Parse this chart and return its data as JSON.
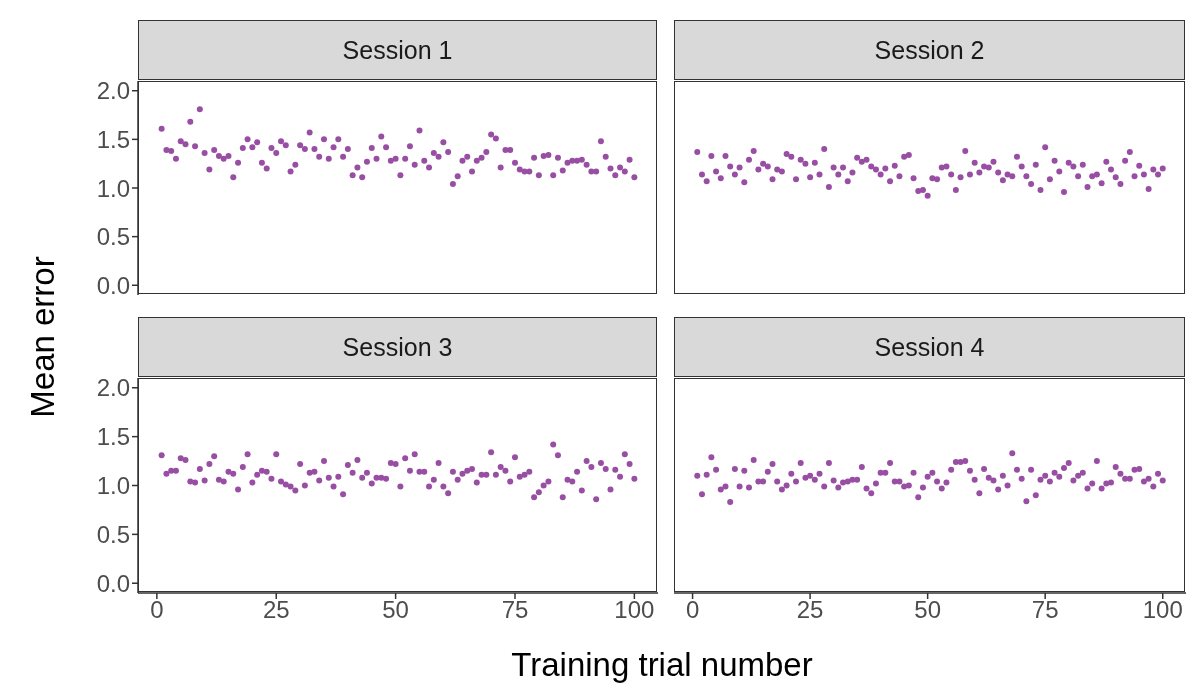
{
  "chart_data": [
    {
      "type": "scatter",
      "title": "Session 1",
      "ylabel": "Mean error",
      "color": "#984ea3",
      "marker": "circle",
      "tick_labels": "y",
      "xlim": [
        -3.95,
        104.95
      ],
      "ylim": [
        -0.1,
        2.1
      ],
      "yticks": [
        {
          "value": 0,
          "label": "0.0"
        },
        {
          "value": 0.5,
          "label": "0.5"
        },
        {
          "value": 1,
          "label": "1.0"
        },
        {
          "value": 1.5,
          "label": "1.5"
        },
        {
          "value": 2,
          "label": "2.0"
        }
      ],
      "x": [
        1,
        2,
        3,
        4,
        5,
        6,
        7,
        8,
        9,
        10,
        11,
        12,
        13,
        14,
        15,
        16,
        17,
        18,
        19,
        20,
        21,
        22,
        23,
        24,
        25,
        26,
        27,
        28,
        29,
        30,
        31,
        32,
        33,
        34,
        35,
        36,
        37,
        38,
        39,
        40,
        41,
        42,
        43,
        44,
        45,
        46,
        47,
        48,
        49,
        50,
        51,
        52,
        53,
        54,
        55,
        56,
        57,
        58,
        59,
        60,
        61,
        62,
        63,
        64,
        65,
        66,
        67,
        68,
        69,
        70,
        71,
        72,
        73,
        74,
        75,
        76,
        77,
        78,
        79,
        80,
        81,
        82,
        83,
        84,
        85,
        86,
        87,
        88,
        89,
        90,
        91,
        92,
        93,
        94,
        95,
        96,
        97,
        98,
        99,
        100
      ],
      "values": [
        1.61,
        1.39,
        1.38,
        1.3,
        1.48,
        1.45,
        1.68,
        1.43,
        1.81,
        1.36,
        1.19,
        1.39,
        1.33,
        1.3,
        1.33,
        1.11,
        1.26,
        1.41,
        1.5,
        1.42,
        1.47,
        1.26,
        1.2,
        1.41,
        1.36,
        1.48,
        1.44,
        1.17,
        1.24,
        1.44,
        1.4,
        1.57,
        1.4,
        1.32,
        1.5,
        1.3,
        1.42,
        1.5,
        1.32,
        1.4,
        1.13,
        1.21,
        1.11,
        1.27,
        1.41,
        1.3,
        1.53,
        1.42,
        1.28,
        1.3,
        1.13,
        1.3,
        1.43,
        1.24,
        1.59,
        1.28,
        1.21,
        1.36,
        1.32,
        1.47,
        1.37,
        1.04,
        1.12,
        1.28,
        1.32,
        1.17,
        1.28,
        1.31,
        1.37,
        1.55,
        1.51,
        1.21,
        1.39,
        1.39,
        1.26,
        1.19,
        1.17,
        1.17,
        1.31,
        1.13,
        1.33,
        1.34,
        1.13,
        1.31,
        1.18,
        1.26,
        1.28,
        1.28,
        1.29,
        1.24,
        1.17,
        1.17,
        1.48,
        1.32,
        1.2,
        1.13,
        1.21,
        1.17,
        1.29,
        1.11
      ]
    },
    {
      "type": "scatter",
      "title": "Session 2",
      "color": "#984ea3",
      "marker": "circle",
      "tick_labels": false,
      "xlim": [
        -3.95,
        104.95
      ],
      "ylim": [
        -0.1,
        2.1
      ],
      "x": [
        1,
        2,
        3,
        4,
        5,
        6,
        7,
        8,
        9,
        10,
        11,
        12,
        13,
        14,
        15,
        16,
        17,
        18,
        19,
        20,
        21,
        22,
        23,
        24,
        25,
        26,
        27,
        28,
        29,
        30,
        31,
        32,
        33,
        34,
        35,
        36,
        37,
        38,
        39,
        40,
        41,
        42,
        43,
        44,
        45,
        46,
        47,
        48,
        49,
        50,
        51,
        52,
        53,
        54,
        55,
        56,
        57,
        58,
        59,
        60,
        61,
        62,
        63,
        64,
        65,
        66,
        67,
        68,
        69,
        70,
        71,
        72,
        73,
        74,
        75,
        76,
        77,
        78,
        79,
        80,
        81,
        82,
        83,
        84,
        85,
        86,
        87,
        88,
        89,
        90,
        91,
        92,
        93,
        94,
        95,
        96,
        97,
        98,
        99,
        100
      ],
      "values": [
        1.37,
        1.14,
        1.07,
        1.33,
        1.17,
        1.1,
        1.33,
        1.22,
        1.14,
        1.21,
        1.06,
        1.29,
        1.38,
        1.19,
        1.25,
        1.22,
        1.09,
        1.19,
        1.17,
        1.35,
        1.32,
        1.09,
        1.29,
        1.25,
        1.11,
        1.26,
        1.14,
        1.4,
        1.01,
        1.21,
        1.14,
        1.21,
        1.07,
        1.16,
        1.31,
        1.27,
        1.29,
        1.22,
        1.19,
        1.14,
        1.2,
        1.07,
        1.23,
        1.12,
        1.32,
        1.34,
        1.1,
        0.97,
        0.98,
        0.92,
        1.1,
        1.09,
        1.21,
        1.22,
        1.14,
        0.98,
        1.11,
        1.38,
        1.14,
        1.26,
        1.16,
        1.22,
        1.21,
        1.27,
        1.16,
        1.08,
        1.14,
        1.12,
        1.32,
        1.22,
        1.12,
        1.04,
        1.24,
        0.98,
        1.42,
        1.09,
        1.28,
        1.17,
        0.96,
        1.26,
        1.22,
        1.12,
        1.24,
        1.01,
        1.12,
        1.14,
        1.05,
        1.27,
        1.19,
        1.11,
        1.04,
        1.28,
        1.37,
        1.12,
        1.23,
        1.14,
        0.99,
        1.19,
        1.14,
        1.2
      ]
    },
    {
      "type": "scatter",
      "title": "Session 3",
      "xlabel": "Training trial number",
      "color": "#984ea3",
      "marker": "circle",
      "xlim": [
        -3.95,
        104.95
      ],
      "xticks": [
        0,
        25,
        50,
        75,
        100
      ],
      "ylim": [
        -0.1,
        2.1
      ],
      "yticks": [
        {
          "value": 0,
          "label": "0.0"
        },
        {
          "value": 0.5,
          "label": "0.5"
        },
        {
          "value": 1,
          "label": "1.0"
        },
        {
          "value": 1.5,
          "label": "1.5"
        },
        {
          "value": 2,
          "label": "2.0"
        }
      ],
      "x": [
        1,
        2,
        3,
        4,
        5,
        6,
        7,
        8,
        9,
        10,
        11,
        12,
        13,
        14,
        15,
        16,
        17,
        18,
        19,
        20,
        21,
        22,
        23,
        24,
        25,
        26,
        27,
        28,
        29,
        30,
        31,
        32,
        33,
        34,
        35,
        36,
        37,
        38,
        39,
        40,
        41,
        42,
        43,
        44,
        45,
        46,
        47,
        48,
        49,
        50,
        51,
        52,
        53,
        54,
        55,
        56,
        57,
        58,
        59,
        60,
        61,
        62,
        63,
        64,
        65,
        66,
        67,
        68,
        69,
        70,
        71,
        72,
        73,
        74,
        75,
        76,
        77,
        78,
        79,
        80,
        81,
        82,
        83,
        84,
        85,
        86,
        87,
        88,
        89,
        90,
        91,
        92,
        93,
        94,
        95,
        96,
        97,
        98,
        99,
        100
      ],
      "values": [
        1.31,
        1.12,
        1.15,
        1.15,
        1.28,
        1.26,
        1.04,
        1.03,
        1.17,
        1.05,
        1.22,
        1.3,
        1.06,
        1.04,
        1.14,
        1.12,
        0.96,
        1.19,
        1.32,
        1.03,
        1.11,
        1.15,
        1.14,
        1.07,
        1.32,
        1.04,
        1.01,
        0.99,
        0.95,
        1.22,
        1.0,
        1.13,
        1.14,
        1.05,
        1.25,
        1.08,
        0.99,
        1.09,
        0.91,
        1.21,
        1.13,
        1.26,
        1.08,
        1.13,
        1.02,
        1.08,
        1.08,
        1.07,
        1.23,
        1.22,
        0.99,
        1.28,
        1.15,
        1.32,
        1.14,
        1.14,
        0.99,
        1.06,
        1.23,
        0.99,
        0.92,
        1.14,
        1.06,
        1.12,
        1.15,
        1.17,
        1.03,
        1.11,
        1.11,
        1.34,
        1.11,
        1.19,
        1.15,
        1.04,
        1.29,
        1.09,
        1.11,
        1.14,
        0.88,
        0.93,
        1.0,
        1.04,
        1.42,
        1.31,
        0.88,
        1.06,
        1.04,
        1.14,
        0.95,
        1.25,
        1.19,
        0.86,
        1.23,
        1.17,
        0.96,
        1.16,
        1.09,
        1.32,
        1.22,
        1.07
      ]
    },
    {
      "type": "scatter",
      "title": "Session 4",
      "color": "#984ea3",
      "marker": "circle",
      "tick_labels": "x",
      "xlim": [
        -3.95,
        104.95
      ],
      "xticks": [
        0,
        25,
        50,
        75,
        100
      ],
      "ylim": [
        -0.1,
        2.1
      ],
      "x": [
        1,
        2,
        3,
        4,
        5,
        6,
        7,
        8,
        9,
        10,
        11,
        12,
        13,
        14,
        15,
        16,
        17,
        18,
        19,
        20,
        21,
        22,
        23,
        24,
        25,
        26,
        27,
        28,
        29,
        30,
        31,
        32,
        33,
        34,
        35,
        36,
        37,
        38,
        39,
        40,
        41,
        42,
        43,
        44,
        45,
        46,
        47,
        48,
        49,
        50,
        51,
        52,
        53,
        54,
        55,
        56,
        57,
        58,
        59,
        60,
        61,
        62,
        63,
        64,
        65,
        66,
        67,
        68,
        69,
        70,
        71,
        72,
        73,
        74,
        75,
        76,
        77,
        78,
        79,
        80,
        81,
        82,
        83,
        84,
        85,
        86,
        87,
        88,
        89,
        90,
        91,
        92,
        93,
        94,
        95,
        96,
        97,
        98,
        99,
        100
      ],
      "values": [
        1.1,
        0.91,
        1.11,
        1.29,
        1.16,
        0.96,
        0.99,
        0.83,
        1.17,
        0.99,
        1.15,
        0.98,
        1.26,
        1.04,
        1.04,
        1.14,
        1.22,
        1.04,
        0.96,
        1.0,
        1.12,
        1.04,
        1.23,
        1.08,
        1.1,
        1.06,
        1.12,
        0.99,
        1.23,
        1.05,
        0.98,
        1.03,
        1.04,
        1.06,
        1.06,
        1.19,
        0.97,
        0.92,
        1.02,
        1.13,
        1.13,
        1.23,
        1.04,
        1.04,
        0.99,
        1.0,
        1.13,
        0.88,
        0.98,
        1.09,
        1.13,
        1.04,
        0.97,
        1.03,
        1.16,
        1.24,
        1.24,
        1.25,
        1.15,
        1.06,
        0.92,
        1.17,
        1.08,
        1.05,
        0.96,
        1.1,
        1.0,
        1.33,
        1.16,
        1.07,
        0.84,
        1.16,
        0.9,
        1.06,
        1.1,
        1.04,
        1.13,
        1.09,
        1.18,
        1.23,
        1.05,
        1.1,
        1.13,
        0.97,
        1.02,
        1.25,
        0.97,
        1.02,
        1.03,
        1.19,
        1.12,
        1.07,
        1.07,
        1.16,
        1.17,
        1.04,
        1.07,
        0.99,
        1.12,
        1.05
      ]
    }
  ]
}
